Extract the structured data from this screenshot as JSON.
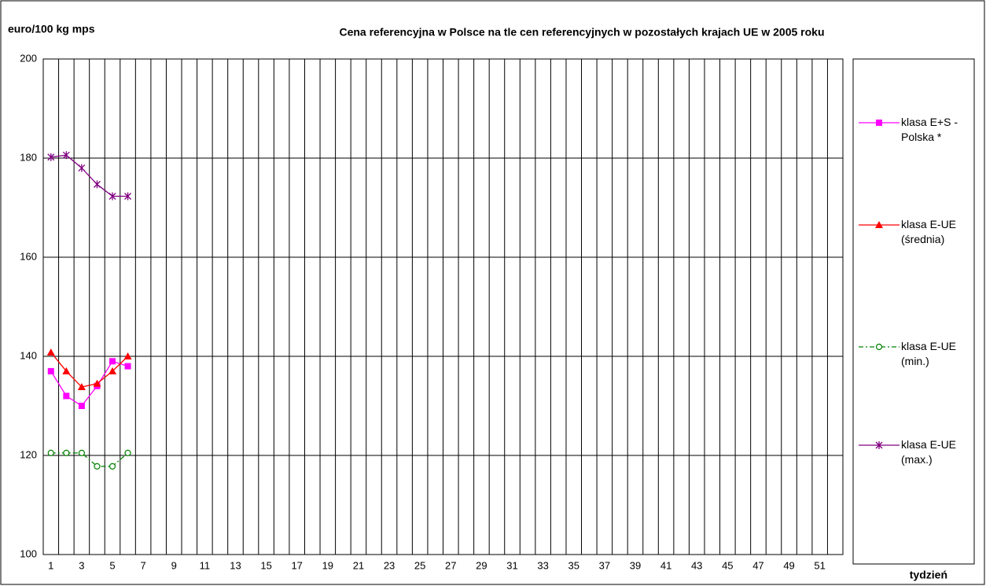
{
  "chart_data": {
    "type": "line",
    "title": "Cena referencyjna w Polsce na tle cen referencyjnych w pozostałych krajach UE w 2005 roku",
    "y_label": "euro/100 kg mps",
    "x_label": "tydzień",
    "categories": [
      1,
      null,
      3,
      null,
      5,
      null,
      7,
      null,
      9,
      null,
      11,
      null,
      13,
      null,
      15,
      null,
      17,
      null,
      19,
      null,
      21,
      null,
      23,
      null,
      25,
      null,
      27,
      null,
      29,
      null,
      31,
      null,
      33,
      null,
      35,
      null,
      37,
      null,
      39,
      null,
      41,
      null,
      43,
      null,
      45,
      null,
      47,
      null,
      49,
      null,
      51,
      null
    ],
    "series": [
      {
        "name": "klasa E+S - Polska *",
        "color": "#ff00ff",
        "marker": "square",
        "dash": "solid",
        "values": [
          137,
          132,
          130,
          134,
          139,
          138,
          null,
          null,
          null,
          null,
          null,
          null,
          null,
          null,
          null,
          null,
          null,
          null,
          null,
          null,
          null,
          null,
          null,
          null,
          null,
          null,
          null,
          null,
          null,
          null,
          null,
          null,
          null,
          null,
          null,
          null,
          null,
          null,
          null,
          null,
          null,
          null,
          null,
          null,
          null,
          null,
          null,
          null,
          null,
          null,
          null,
          null
        ]
      },
      {
        "name": "klasa E-UE (średnia)",
        "color": "#ff0000",
        "marker": "triangle",
        "dash": "solid",
        "values": [
          140.8,
          137,
          133.8,
          134.5,
          137,
          140,
          null,
          null,
          null,
          null,
          null,
          null,
          null,
          null,
          null,
          null,
          null,
          null,
          null,
          null,
          null,
          null,
          null,
          null,
          null,
          null,
          null,
          null,
          null,
          null,
          null,
          null,
          null,
          null,
          null,
          null,
          null,
          null,
          null,
          null,
          null,
          null,
          null,
          null,
          null,
          null,
          null,
          null,
          null,
          null,
          null,
          null
        ]
      },
      {
        "name": "klasa E-UE (min.)",
        "color": "#008000",
        "marker": "circle",
        "dash": "dashdot",
        "values": [
          120.5,
          120.5,
          120.5,
          117.8,
          117.8,
          120.5,
          null,
          null,
          null,
          null,
          null,
          null,
          null,
          null,
          null,
          null,
          null,
          null,
          null,
          null,
          null,
          null,
          null,
          null,
          null,
          null,
          null,
          null,
          null,
          null,
          null,
          null,
          null,
          null,
          null,
          null,
          null,
          null,
          null,
          null,
          null,
          null,
          null,
          null,
          null,
          null,
          null,
          null,
          null,
          null,
          null,
          null
        ]
      },
      {
        "name": "klasa E-UE (max.)",
        "color": "#800080",
        "marker": "star",
        "dash": "solid",
        "values": [
          180.2,
          180.6,
          178,
          174.7,
          172.3,
          172.3,
          null,
          null,
          null,
          null,
          null,
          null,
          null,
          null,
          null,
          null,
          null,
          null,
          null,
          null,
          null,
          null,
          null,
          null,
          null,
          null,
          null,
          null,
          null,
          null,
          null,
          null,
          null,
          null,
          null,
          null,
          null,
          null,
          null,
          null,
          null,
          null,
          null,
          null,
          null,
          null,
          null,
          null,
          null,
          null,
          null,
          null
        ]
      }
    ],
    "ylim": [
      100,
      200
    ],
    "yticks": [
      100,
      120,
      140,
      160,
      180,
      200
    ],
    "grid": true,
    "legend": "right"
  }
}
